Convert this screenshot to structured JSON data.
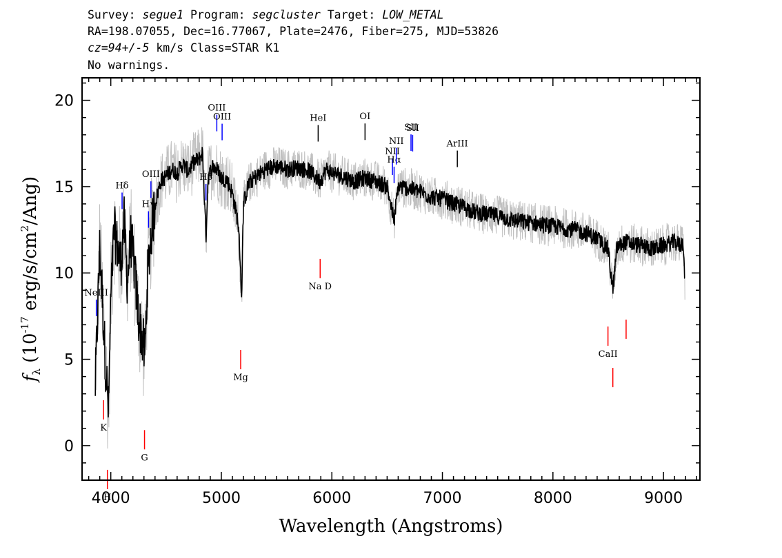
{
  "header": {
    "line1": {
      "survey_label": "Survey: ",
      "survey": "segue1",
      "program_label": " Program: ",
      "program": "segcluster",
      "target_label": " Target: ",
      "target": "LOW_METAL"
    },
    "line2": "RA=198.07055, Dec=16.77067, Plate=2476, Fiber=275, MJD=53826",
    "line3": {
      "cz": "cz=94+/-5",
      "rest": " km/s Class=STAR K1"
    },
    "line4": "No warnings."
  },
  "chart_data": {
    "type": "line",
    "xlabel": "Wavelength (Angstroms)",
    "ylabel": "f_λ (10^-17 erg/s/cm^2/Ang)",
    "xlim": [
      3740,
      9330
    ],
    "ylim": [
      -2,
      21.3
    ],
    "xticks": [
      4000,
      5000,
      6000,
      7000,
      8000,
      9000
    ],
    "yticks": [
      0,
      5,
      10,
      15,
      20
    ],
    "grid": false,
    "series": [
      {
        "role": "smoothed",
        "color": "#000000",
        "x": [
          3860,
          3880,
          3900,
          3920,
          3950,
          3980,
          4000,
          4030,
          4060,
          4090,
          4120,
          4150,
          4180,
          4210,
          4250,
          4290,
          4310,
          4330,
          4360,
          4400,
          4450,
          4500,
          4550,
          4600,
          4650,
          4700,
          4750,
          4800,
          4830,
          4861,
          4880,
          4920,
          4960,
          5000,
          5050,
          5100,
          5150,
          5170,
          5183,
          5200,
          5250,
          5300,
          5400,
          5500,
          5600,
          5700,
          5800,
          5893,
          5950,
          6000,
          6100,
          6200,
          6300,
          6400,
          6500,
          6563,
          6600,
          6700,
          6800,
          6900,
          7000,
          7100,
          7200,
          7300,
          7400,
          7500,
          7600,
          7700,
          7800,
          7900,
          8000,
          8100,
          8200,
          8300,
          8400,
          8498,
          8542,
          8580,
          8662,
          8700,
          8800,
          8900,
          9000,
          9100,
          9150,
          9180,
          9195
        ],
        "y": [
          3.5,
          7.5,
          11.5,
          9.0,
          5.0,
          2.0,
          8.5,
          12.5,
          11.5,
          10.5,
          13.0,
          9.5,
          12.0,
          10.5,
          7.5,
          6.0,
          5.2,
          9.5,
          12.0,
          14.0,
          15.3,
          15.6,
          16.0,
          15.8,
          16.3,
          15.9,
          16.4,
          16.6,
          17.0,
          12.0,
          15.5,
          16.2,
          16.0,
          15.5,
          15.4,
          14.6,
          13.0,
          11.0,
          8.5,
          14.0,
          15.2,
          15.5,
          16.0,
          16.2,
          16.0,
          16.1,
          15.9,
          15.3,
          16.0,
          15.8,
          15.6,
          15.3,
          15.5,
          15.3,
          15.0,
          13.0,
          15.0,
          14.9,
          14.7,
          14.4,
          14.3,
          14.0,
          13.8,
          13.5,
          13.4,
          13.3,
          13.1,
          13.0,
          12.9,
          12.8,
          12.7,
          12.6,
          12.5,
          12.3,
          12.0,
          11.4,
          9.0,
          11.5,
          11.8,
          11.7,
          11.6,
          11.4,
          11.6,
          11.8,
          11.6,
          11.8,
          9.2
        ]
      }
    ],
    "lines": [
      {
        "label": "NeIII",
        "x": 3869,
        "color": "#0000ff",
        "band": "upper"
      },
      {
        "label": "Hδ",
        "x": 4102,
        "color": "#0000ff",
        "band": "upper"
      },
      {
        "label": "Hγ",
        "x": 4341,
        "color": "#0000ff",
        "band": "upper"
      },
      {
        "label": "OIII",
        "x": 4363,
        "color": "#0000ff",
        "band": "upper"
      },
      {
        "label": "Hβ",
        "x": 4861,
        "color": "#0000ff",
        "band": "upper"
      },
      {
        "label": "OIII",
        "x": 4959,
        "color": "#0000ff",
        "band": "upper"
      },
      {
        "label": "OIII",
        "x": 5007,
        "color": "#0000ff",
        "band": "upper"
      },
      {
        "label": "HeI",
        "x": 5876,
        "color": "#000000",
        "band": "upper"
      },
      {
        "label": "OI",
        "x": 6300,
        "color": "#000000",
        "band": "upper"
      },
      {
        "label": "NII",
        "x": 6548,
        "color": "#0000ff",
        "band": "upper"
      },
      {
        "label": "Hα",
        "x": 6563,
        "color": "#0000ff",
        "band": "upper"
      },
      {
        "label": "NII",
        "x": 6583,
        "color": "#0000ff",
        "band": "upper"
      },
      {
        "label": "SII",
        "x": 6716,
        "color": "#0000ff",
        "band": "upper"
      },
      {
        "label": "SII",
        "x": 6731,
        "color": "#0000ff",
        "band": "upper"
      },
      {
        "label": "ArIII",
        "x": 7135,
        "color": "#000000",
        "band": "upper"
      },
      {
        "label": "OII",
        "x": 3727,
        "color": "#000000",
        "band": "upper"
      },
      {
        "label": "K",
        "x": 3934,
        "color": "#ff0000",
        "band": "lower"
      },
      {
        "label": "H",
        "x": 3969,
        "color": "#ff0000",
        "band": "lower"
      },
      {
        "label": "G",
        "x": 4305,
        "color": "#ff0000",
        "band": "lower"
      },
      {
        "label": "Mg",
        "x": 5175,
        "color": "#ff0000",
        "band": "lower"
      },
      {
        "label": "Na D",
        "x": 5894,
        "color": "#ff0000",
        "band": "lower"
      },
      {
        "label": "CaII",
        "x": 8498,
        "color": "#ff0000",
        "band": "lower"
      },
      {
        "label": "CaII",
        "x": 8542,
        "color": "#ff0000",
        "band": "lower"
      },
      {
        "label": "CaII",
        "x": 8662,
        "color": "#ff0000",
        "band": "lower"
      }
    ],
    "colors": {
      "raw_flux": "#c0c0c0",
      "smoothed_flux": "#000000",
      "emission": "#0000ff",
      "absorption": "#ff0000"
    }
  }
}
